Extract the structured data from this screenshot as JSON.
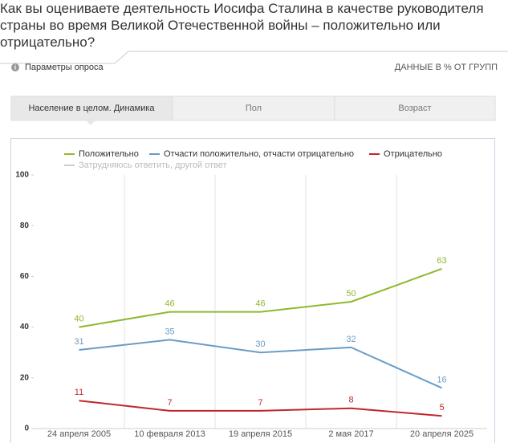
{
  "chart_data": {
    "type": "line",
    "title": "Как вы оцениваете деятельность Иосифа Сталина в качестве руководителя страны во время Великой Отечественной войны – положительно или отрицательно?",
    "params_label": "Параметры опроса",
    "units_note": "ДАННЫЕ В % ОТ ГРУПП",
    "tabs": [
      "Население в целом. Динамика",
      "Пол",
      "Возраст"
    ],
    "categories": [
      "24 апреля 2005",
      "10 февраля 2013",
      "19 апреля 2015",
      "2 мая 2017",
      "20 апреля 2025"
    ],
    "series": [
      {
        "name": "Положительно",
        "color": "#8db92e",
        "values": [
          40,
          46,
          46,
          50,
          63
        ]
      },
      {
        "name": "Отчасти положительно, отчасти отрицательно",
        "color": "#6a9cc6",
        "values": [
          31,
          35,
          30,
          32,
          16
        ]
      },
      {
        "name": "Отрицательно",
        "color": "#c0272d",
        "values": [
          11,
          7,
          7,
          8,
          5
        ]
      },
      {
        "name": "Затрудняюсь ответить, другой ответ",
        "color": "#cccccc",
        "visible": false,
        "values": [
          null,
          null,
          null,
          null,
          null
        ]
      }
    ],
    "ylim": [
      0,
      100
    ],
    "yticks": [
      0,
      20,
      40,
      60,
      80,
      100
    ]
  }
}
